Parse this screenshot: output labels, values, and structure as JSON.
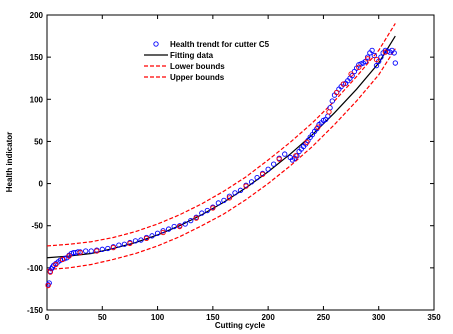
{
  "chart_data": {
    "type": "scatter",
    "title": "",
    "xlabel": "Cutting cycle",
    "ylabel": "Health indicator",
    "xlim": [
      0,
      350
    ],
    "ylim": [
      -150,
      200
    ],
    "xticks": [
      0,
      50,
      100,
      150,
      200,
      250,
      300,
      350
    ],
    "yticks": [
      -150,
      -100,
      -50,
      0,
      50,
      100,
      150,
      200
    ],
    "grid": false,
    "legend_position": "top-center",
    "series": [
      {
        "name": "Health trendt for cutter C5",
        "kind": "markers",
        "marker": "circle",
        "color": "#0000ff",
        "x": [
          1,
          2,
          3,
          4,
          5,
          6,
          8,
          10,
          12,
          14,
          16,
          18,
          20,
          22,
          24,
          26,
          28,
          30,
          35,
          40,
          45,
          50,
          55,
          60,
          65,
          70,
          75,
          80,
          85,
          90,
          95,
          100,
          105,
          110,
          115,
          120,
          125,
          130,
          135,
          140,
          145,
          150,
          155,
          160,
          165,
          170,
          175,
          180,
          185,
          190,
          195,
          200,
          205,
          210,
          215,
          220,
          222,
          224,
          226,
          228,
          230,
          232,
          234,
          236,
          238,
          240,
          242,
          244,
          246,
          248,
          250,
          252,
          254,
          256,
          258,
          260,
          262,
          264,
          266,
          268,
          270,
          272,
          274,
          276,
          278,
          280,
          282,
          284,
          286,
          288,
          290,
          292,
          294,
          296,
          298,
          300,
          302,
          304,
          306,
          308,
          310,
          312,
          314,
          315
        ],
        "y": [
          -120,
          -118,
          -104,
          -101,
          -99,
          -97,
          -95,
          -93,
          -91,
          -90,
          -89,
          -88,
          -85,
          -83,
          -82,
          -82,
          -81,
          -81,
          -80,
          -80,
          -79,
          -78,
          -77,
          -75,
          -73,
          -72,
          -70,
          -68,
          -67,
          -64,
          -62,
          -59,
          -56,
          -54,
          -51,
          -50,
          -48,
          -44,
          -40,
          -35,
          -32,
          -28,
          -23,
          -20,
          -15,
          -11,
          -8,
          -2,
          2,
          7,
          12,
          17,
          23,
          30,
          35,
          31,
          28,
          30,
          33,
          38,
          41,
          44,
          47,
          51,
          55,
          58,
          62,
          65,
          70,
          72,
          75,
          76,
          80,
          90,
          98,
          105,
          108,
          112,
          115,
          118,
          119,
          122,
          125,
          128,
          133,
          137,
          141,
          142,
          143,
          145,
          150,
          155,
          158,
          152,
          140,
          145,
          150,
          155,
          158,
          157,
          156,
          158,
          155,
          143
        ]
      },
      {
        "name": "",
        "kind": "markers",
        "marker": "circle",
        "color": "#ff0000",
        "x": [
          1,
          3,
          8,
          14,
          20,
          30,
          45,
          60,
          75,
          90,
          105,
          120,
          135,
          150,
          165,
          180,
          195,
          210,
          225,
          235,
          245,
          255,
          262,
          268,
          275,
          282,
          290,
          298,
          306
        ],
        "y": [
          -121,
          -105,
          -96,
          -90,
          -86,
          -82,
          -80,
          -76,
          -71,
          -65,
          -58,
          -51,
          -41,
          -29,
          -17,
          -3,
          11,
          29,
          33,
          49,
          67,
          85,
          108,
          118,
          130,
          138,
          148,
          147,
          156
        ]
      },
      {
        "name": "Fitting data",
        "kind": "line",
        "style": "solid",
        "color": "#000000",
        "x": [
          0,
          20,
          40,
          60,
          80,
          100,
          120,
          140,
          160,
          180,
          200,
          220,
          240,
          260,
          280,
          300,
          315
        ],
        "y": [
          -88,
          -86,
          -83,
          -77,
          -70,
          -61,
          -50,
          -37,
          -22,
          -5,
          14,
          35,
          58,
          84,
          112,
          143,
          175
        ]
      },
      {
        "name": "Lower bounds",
        "kind": "line",
        "style": "dashed",
        "color": "#ff0000",
        "x": [
          0,
          20,
          40,
          60,
          80,
          100,
          120,
          140,
          160,
          180,
          200,
          220,
          240,
          260,
          280,
          300,
          315
        ],
        "y": [
          -102,
          -100,
          -96,
          -90,
          -83,
          -74,
          -63,
          -50,
          -36,
          -19,
          0,
          21,
          44,
          70,
          98,
          129,
          160
        ]
      },
      {
        "name": "Upper bounds",
        "kind": "line",
        "style": "dashed",
        "color": "#ff0000",
        "x": [
          0,
          20,
          40,
          60,
          80,
          100,
          120,
          140,
          160,
          180,
          200,
          220,
          240,
          260,
          280,
          300,
          315
        ],
        "y": [
          -74,
          -72,
          -69,
          -64,
          -57,
          -48,
          -37,
          -24,
          -9,
          8,
          28,
          49,
          72,
          98,
          127,
          158,
          190
        ]
      }
    ]
  }
}
